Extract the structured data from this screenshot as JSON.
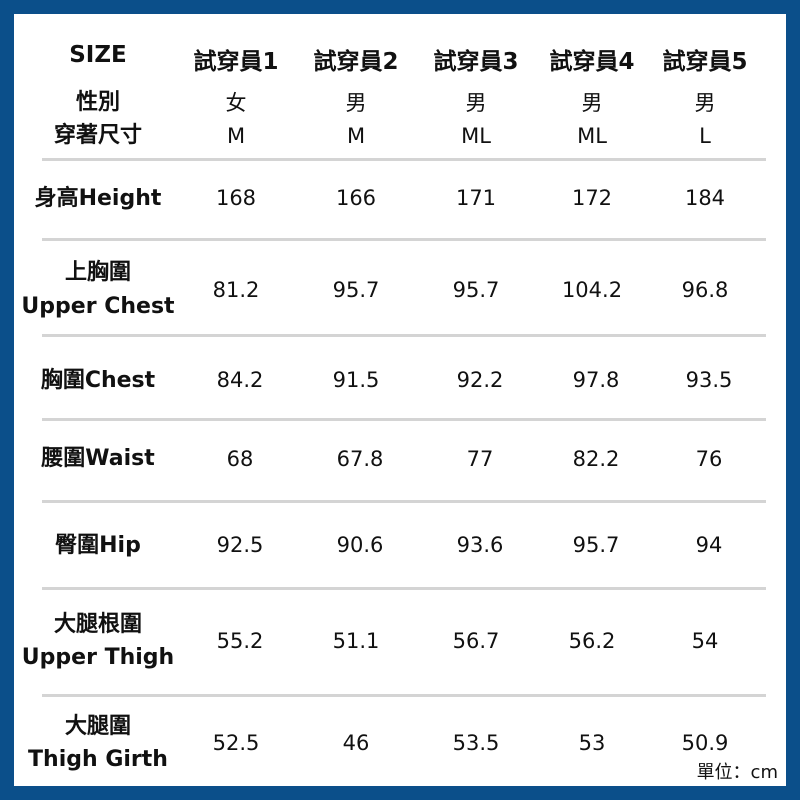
{
  "header": {
    "size_label": "SIZE",
    "testers": [
      "試穿員1",
      "試穿員2",
      "試穿員3",
      "試穿員4",
      "試穿員5"
    ]
  },
  "info": {
    "label_line1": "性別",
    "label_line2": "穿著尺寸",
    "gender": [
      "女",
      "男",
      "男",
      "男",
      "男"
    ],
    "size_worn": [
      "M",
      "M",
      "ML",
      "ML",
      "L"
    ]
  },
  "rows": [
    {
      "label": [
        "身高Height"
      ],
      "values": [
        "168",
        "166",
        "171",
        "172",
        "184"
      ]
    },
    {
      "label": [
        "上胸圍",
        "Upper Chest"
      ],
      "values": [
        "81.2",
        "95.7",
        "95.7",
        "104.2",
        "96.8"
      ]
    },
    {
      "label": [
        "胸圍Chest"
      ],
      "values": [
        "84.2",
        "91.5",
        "92.2",
        "97.8",
        "93.5"
      ]
    },
    {
      "label": [
        "腰圍Waist"
      ],
      "values": [
        "68",
        "67.8",
        "77",
        "82.2",
        "76"
      ]
    },
    {
      "label": [
        "臀圍Hip"
      ],
      "values": [
        "92.5",
        "90.6",
        "93.6",
        "95.7",
        "94"
      ]
    },
    {
      "label": [
        "大腿根圍",
        "Upper Thigh"
      ],
      "values": [
        "55.2",
        "51.1",
        "56.7",
        "56.2",
        "54"
      ]
    },
    {
      "label": [
        "大腿圍",
        "Thigh Girth"
      ],
      "values": [
        "52.5",
        "46",
        "53.5",
        "53",
        "50.9"
      ]
    }
  ],
  "unit": "單位：cm"
}
